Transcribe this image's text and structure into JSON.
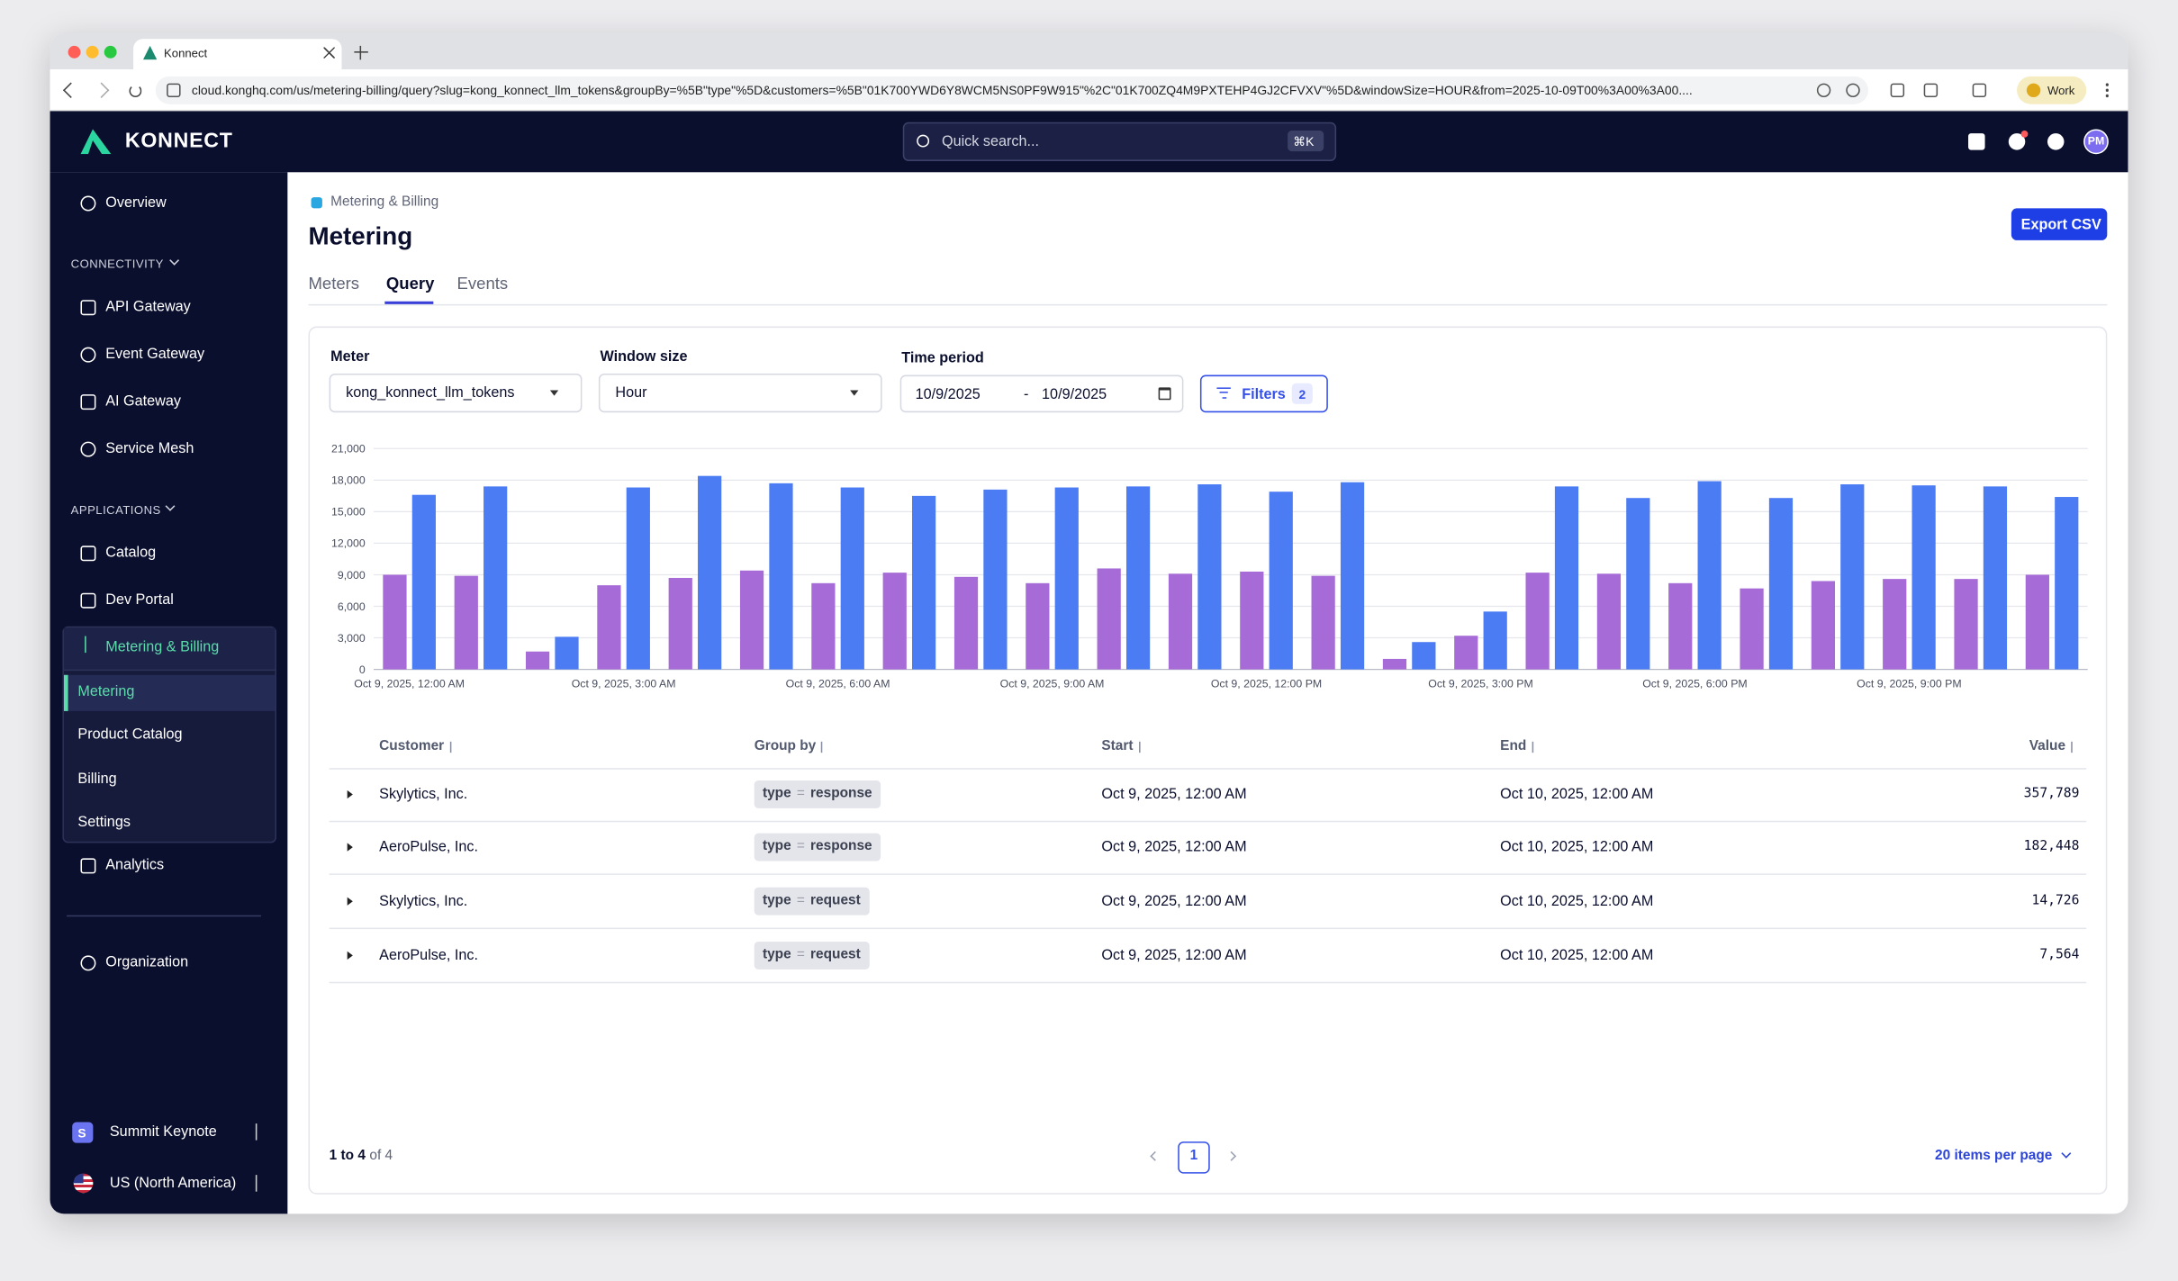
{
  "browser": {
    "tab_title": "Konnect",
    "url": "cloud.konghq.com/us/metering-billing/query?slug=kong_konnect_llm_tokens&groupBy=%5B\"type\"%5D&customers=%5B\"01K700YWD6Y8WCM5NS0PF9W915\"%2C\"01K700ZQ4M9PXTEHP4GJ2CFVXV\"%5D&windowSize=HOUR&from=2025-10-09T00%3A00%3A00....",
    "profile": "Work"
  },
  "header": {
    "logo": "KONNECT",
    "search_placeholder": "Quick search...",
    "shortcut": "⌘K",
    "avatar": "PM"
  },
  "sidebar": {
    "overview": "Overview",
    "connectivity": {
      "title": "CONNECTIVITY",
      "items": [
        "API Gateway",
        "Event Gateway",
        "AI Gateway",
        "Service Mesh"
      ]
    },
    "applications": {
      "title": "APPLICATIONS",
      "items": [
        "Catalog",
        "Dev Portal"
      ]
    },
    "metering": {
      "title": "Metering & Billing",
      "items": [
        "Metering",
        "Product Catalog",
        "Billing",
        "Settings"
      ]
    },
    "analytics": "Analytics",
    "organization": "Organization",
    "org": {
      "initial": "S",
      "name": "Summit Keynote"
    },
    "region": "US (North America)"
  },
  "page": {
    "breadcrumb": "Metering & Billing",
    "title": "Metering",
    "export": "Export CSV",
    "tabs": [
      "Meters",
      "Query",
      "Events"
    ]
  },
  "form": {
    "meter_label": "Meter",
    "meter_value": "kong_konnect_llm_tokens",
    "window_label": "Window size",
    "window_value": "Hour",
    "period_label": "Time period",
    "from": "10/9/2025",
    "separator": "-",
    "to": "10/9/2025",
    "filters": "Filters",
    "filters_count": 2
  },
  "chart_data": {
    "type": "bar",
    "categories": [
      "Oct 9, 2025, 12:00 AM",
      null,
      null,
      "Oct 9, 2025, 3:00 AM",
      null,
      null,
      "Oct 9, 2025, 6:00 AM",
      null,
      null,
      "Oct 9, 2025, 9:00 AM",
      null,
      null,
      "Oct 9, 2025, 12:00 PM",
      null,
      null,
      "Oct 9, 2025, 3:00 PM",
      null,
      null,
      "Oct 9, 2025, 6:00 PM",
      null,
      null,
      "Oct 9, 2025, 9:00 PM",
      null,
      null
    ],
    "series": [
      {
        "color": "#a66bd6",
        "values": [
          9000,
          8900,
          1700,
          8000,
          8700,
          9400,
          8200,
          9200,
          8800,
          8200,
          9600,
          9100,
          9300,
          8900,
          1000,
          3200,
          9200,
          9100,
          8200,
          7700,
          8400,
          8600,
          8600,
          9000
        ]
      },
      {
        "color": "#4c7cf3",
        "values": [
          16600,
          17400,
          3100,
          17300,
          18400,
          17700,
          17300,
          16500,
          17100,
          17300,
          17400,
          17600,
          16900,
          17800,
          2600,
          5500,
          17400,
          16300,
          17900,
          16300,
          17600,
          17500,
          17400,
          16400
        ]
      }
    ],
    "ylim": [
      0,
      21000
    ],
    "yticks": [
      0,
      {
        "value": 3000,
        "label": "3,000"
      },
      {
        "value": 6000,
        "label": "6,000"
      },
      {
        "value": 9000,
        "label": "9,000"
      },
      {
        "value": 12000,
        "label": "12,000"
      },
      {
        "value": 15000,
        "label": "15,000"
      },
      {
        "value": 18000,
        "label": "18,000"
      },
      {
        "value": 21000,
        "label": "21,000"
      }
    ],
    "grid": true
  },
  "table": {
    "headers": [
      "Customer",
      "Group by",
      "Start",
      "End",
      "Value"
    ],
    "rows": [
      {
        "customer": "Skylytics, Inc.",
        "group_by": {
          "key": "type",
          "op": "=",
          "value": "response"
        },
        "start": "Oct 9, 2025, 12:00 AM",
        "end": "Oct 10, 2025, 12:00 AM",
        "value": "357,789"
      },
      {
        "customer": "AeroPulse, Inc.",
        "group_by": {
          "key": "type",
          "op": "=",
          "value": "response"
        },
        "start": "Oct 9, 2025, 12:00 AM",
        "end": "Oct 10, 2025, 12:00 AM",
        "value": "182,448"
      },
      {
        "customer": "Skylytics, Inc.",
        "group_by": {
          "key": "type",
          "op": "=",
          "value": "request"
        },
        "start": "Oct 9, 2025, 12:00 AM",
        "end": "Oct 10, 2025, 12:00 AM",
        "value": "14,726"
      },
      {
        "customer": "AeroPulse, Inc.",
        "group_by": {
          "key": "type",
          "op": "=",
          "value": "request"
        },
        "start": "Oct 9, 2025, 12:00 AM",
        "end": "Oct 10, 2025, 12:00 AM",
        "value": "7,564"
      }
    ]
  },
  "pagination": {
    "range": "1 to 4",
    "total": "of 4",
    "page": "1",
    "per_page": "20 items per page"
  }
}
